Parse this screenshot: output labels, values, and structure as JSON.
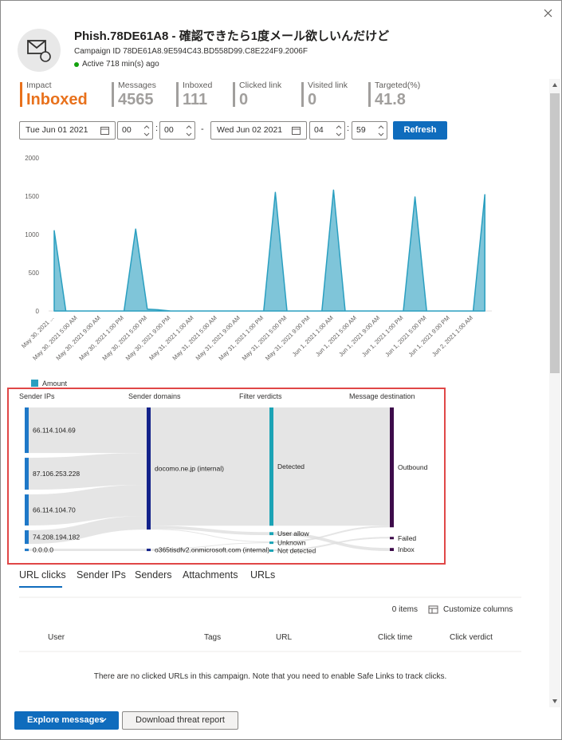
{
  "header": {
    "title": "Phish.78DE61A8 - 確認できたら1度メール欲しいんだけど",
    "campaign_id": "Campaign ID 78DE61A8.9E594C43.BD558D99.C8E224F9.2006F",
    "status": "Active 718 min(s) ago"
  },
  "stats": [
    {
      "label": "Impact",
      "value": "Inboxed"
    },
    {
      "label": "Messages",
      "value": 4565
    },
    {
      "label": "Inboxed",
      "value": 111
    },
    {
      "label": "Clicked link",
      "value": 0
    },
    {
      "label": "Visited link",
      "value": 0
    },
    {
      "label": "Targeted(%)",
      "value": 41.8
    }
  ],
  "filters": {
    "start_date": "Tue Jun 01 2021",
    "start_hour": "00",
    "start_minute": "00",
    "separator": "-",
    "end_date": "Wed Jun 02 2021",
    "end_hour": "04",
    "end_minute": "59",
    "refresh": "Refresh"
  },
  "chart_data": {
    "type": "area",
    "categories": [
      "May 30, 2021 ...",
      null,
      "May 30, 2021 5:00 AM",
      null,
      "May 30, 2021 9:00 AM",
      null,
      "May 30, 2021 1:00 PM",
      null,
      "May 30, 2021 5:00 PM",
      null,
      "May 30, 2021 9:00 PM",
      null,
      "May 31, 2021 1:00 AM",
      null,
      "May 31, 2021 5:00 AM",
      null,
      "May 31, 2021 9:00 AM",
      null,
      "May 31, 2021 1:00 PM",
      null,
      "May 31, 2021 5:00 PM",
      null,
      "May 31, 2021 9:00 PM",
      null,
      "Jun 1, 2021 1:00 AM",
      null,
      "Jun 1, 2021 5:00 AM",
      null,
      "Jun 1, 2021 9:00 AM",
      null,
      "Jun 1, 2021 1:00 PM",
      null,
      "Jun 1, 2021 5:00 PM",
      null,
      "Jun 1, 2021 9:00 PM",
      null,
      "Jun 2, 2021 1:00 AM",
      null
    ],
    "series": [
      {
        "name": "Amount",
        "color": "#2a9fc0",
        "values": [
          1050,
          0,
          0,
          0,
          0,
          0,
          0,
          1070,
          25,
          15,
          0,
          0,
          0,
          0,
          0,
          0,
          0,
          0,
          0,
          1550,
          0,
          0,
          0,
          0,
          1580,
          0,
          0,
          0,
          0,
          0,
          0,
          1490,
          0,
          0,
          0,
          0,
          0,
          1520
        ]
      }
    ],
    "ylim": [
      0,
      2000
    ],
    "yticks": [
      0,
      500,
      1000,
      1500,
      2000
    ]
  },
  "flow": {
    "type": "sankey",
    "columns": [
      {
        "title": "Sender IPs",
        "color": "#1e78c8"
      },
      {
        "title": "Sender domains",
        "color": "#13228a"
      },
      {
        "title": "Filter verdicts",
        "color": "#1ba3b5"
      },
      {
        "title": "Message destination",
        "color": "#3d0b4a"
      }
    ],
    "nodes": [
      {
        "label": "66.114.104.69",
        "column": 0
      },
      {
        "label": "87.106.253.228",
        "column": 0
      },
      {
        "label": "66.114.104.70",
        "column": 0
      },
      {
        "label": "74.208.194.182",
        "column": 0
      },
      {
        "label": "0.0.0.0",
        "column": 0
      },
      {
        "label": "docomo.ne.jp (internal)",
        "column": 1
      },
      {
        "label": "o365tisdfv2.onmicrosoft.com (internal)",
        "column": 1
      },
      {
        "label": "Detected",
        "column": 2
      },
      {
        "label": "User allow",
        "column": 2
      },
      {
        "label": "Unknown",
        "column": 2
      },
      {
        "label": "Not detected",
        "column": 2
      },
      {
        "label": "Outbound",
        "column": 3
      },
      {
        "label": "Failed",
        "column": 3
      },
      {
        "label": "Inbox",
        "column": 3
      }
    ],
    "links": [
      {
        "source": 0,
        "target": 5,
        "value": 1670
      },
      {
        "source": 1,
        "target": 5,
        "value": 1170
      },
      {
        "source": 2,
        "target": 5,
        "value": 1140
      },
      {
        "source": 3,
        "target": 5,
        "value": 500
      },
      {
        "source": 4,
        "target": 6,
        "value": 85
      },
      {
        "source": 5,
        "target": 7,
        "value": 4340
      },
      {
        "source": 5,
        "target": 8,
        "value": 111
      },
      {
        "source": 5,
        "target": 9,
        "value": 29
      },
      {
        "source": 6,
        "target": 9,
        "value": 28
      },
      {
        "source": 6,
        "target": 10,
        "value": 57
      },
      {
        "source": 7,
        "target": 11,
        "value": 4340
      },
      {
        "source": 9,
        "target": 11,
        "value": 57
      },
      {
        "source": 10,
        "target": 12,
        "value": 57
      },
      {
        "source": 8,
        "target": 13,
        "value": 111
      }
    ]
  },
  "tabs": [
    "URL clicks",
    "Sender IPs",
    "Senders",
    "Attachments",
    "URLs"
  ],
  "table": {
    "count": "0 items",
    "customize": "Customize columns",
    "columns": [
      "User",
      "Tags",
      "URL",
      "Click time",
      "Click verdict"
    ],
    "empty": "There are no clicked URLs in this campaign. Note that you need to enable Safe Links to track clicks."
  },
  "footer": {
    "explore": "Explore messages",
    "download": "Download threat report"
  }
}
